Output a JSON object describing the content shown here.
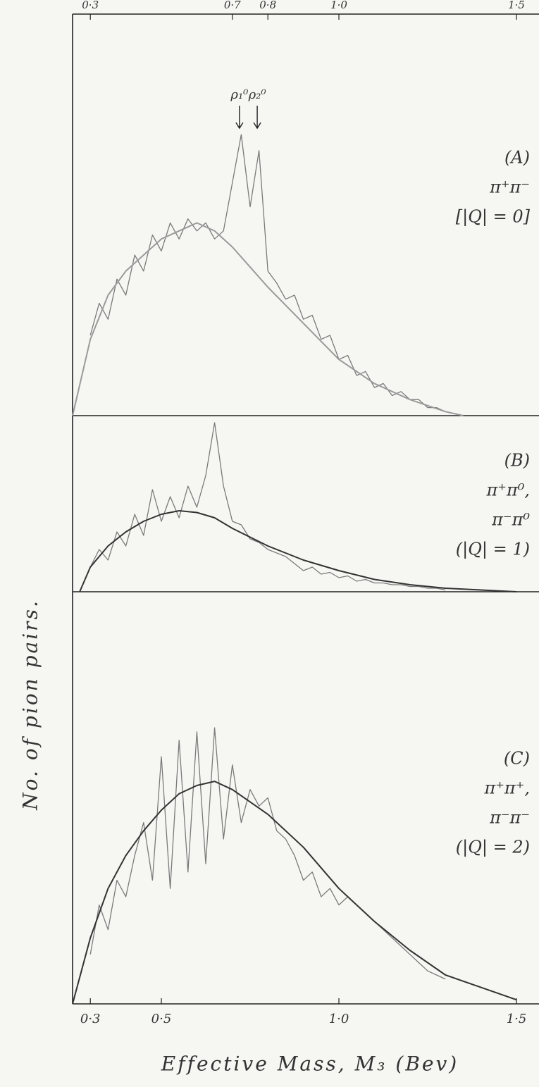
{
  "chart_data": [
    {
      "type": "line",
      "xlim": [
        0.25,
        1.55
      ],
      "ylim": [
        0,
        100
      ],
      "x2ticks": [
        {
          "value": 0.3,
          "label": "0·3"
        },
        {
          "value": 0.7,
          "label": "0·7"
        },
        {
          "value": 0.8,
          "label": "0·8"
        },
        {
          "value": 1.0,
          "label": "1·0"
        },
        {
          "value": 1.5,
          "label": "1·5"
        }
      ],
      "panel_label": [
        "(A)",
        "π⁺π⁻",
        "[|Q| = 0]"
      ],
      "annotations": [
        {
          "text": "ρ₁⁰",
          "x": 0.72
        },
        {
          "text": "ρ₂⁰",
          "x": 0.77
        }
      ],
      "series": [
        {
          "color": "#7a7a7a",
          "x": [
            0.3,
            0.325,
            0.35,
            0.375,
            0.4,
            0.425,
            0.45,
            0.475,
            0.5,
            0.525,
            0.55,
            0.575,
            0.6,
            0.625,
            0.65,
            0.675,
            0.7,
            0.725,
            0.75,
            0.775,
            0.8,
            0.825,
            0.85,
            0.875,
            0.9,
            0.925,
            0.95,
            0.975,
            1.0,
            1.025,
            1.05,
            1.075,
            1.1,
            1.125,
            1.15,
            1.175,
            1.2,
            1.225,
            1.25,
            1.275,
            1.3
          ],
          "values": [
            20,
            28,
            24,
            34,
            30,
            40,
            36,
            45,
            41,
            48,
            44,
            49,
            46,
            48,
            44,
            46,
            58,
            70,
            52,
            66,
            36,
            33,
            29,
            30,
            24,
            25,
            19,
            20,
            14,
            15,
            10,
            11,
            7,
            8,
            5,
            6,
            4,
            4,
            2,
            2,
            1
          ]
        },
        {
          "color": "#9a9a9a",
          "x": [
            0.25,
            0.3,
            0.35,
            0.4,
            0.45,
            0.5,
            0.55,
            0.6,
            0.65,
            0.7,
            0.8,
            0.9,
            1.0,
            1.1,
            1.2,
            1.3,
            1.35
          ],
          "values": [
            0,
            19,
            30,
            36,
            40,
            44,
            46,
            48,
            46,
            42,
            32,
            23,
            14,
            8,
            4,
            1,
            0
          ]
        }
      ]
    },
    {
      "type": "line",
      "xlim": [
        0.25,
        1.55
      ],
      "ylim": [
        0,
        100
      ],
      "ylabel": "No. of pion pairs.",
      "panel_label": [
        "(B)",
        "π⁺π⁰,",
        "π⁻π⁰",
        "(|Q| = 1)"
      ],
      "series": [
        {
          "color": "#7a7a7a",
          "x": [
            0.3,
            0.325,
            0.35,
            0.375,
            0.4,
            0.425,
            0.45,
            0.475,
            0.5,
            0.525,
            0.55,
            0.575,
            0.6,
            0.625,
            0.65,
            0.675,
            0.7,
            0.725,
            0.75,
            0.775,
            0.8,
            0.825,
            0.85,
            0.875,
            0.9,
            0.925,
            0.95,
            0.975,
            1.0,
            1.025,
            1.05,
            1.075,
            1.1,
            1.125,
            1.15,
            1.175,
            1.2,
            1.225,
            1.25,
            1.275,
            1.3
          ],
          "values": [
            14,
            24,
            18,
            34,
            26,
            44,
            32,
            58,
            40,
            54,
            42,
            60,
            48,
            66,
            96,
            60,
            40,
            38,
            30,
            28,
            24,
            22,
            20,
            16,
            12,
            14,
            10,
            11,
            8,
            9,
            6,
            7,
            5,
            5,
            4,
            4,
            3,
            3,
            2,
            2,
            1
          ]
        },
        {
          "color": "#333333",
          "x": [
            0.27,
            0.3,
            0.35,
            0.4,
            0.45,
            0.5,
            0.55,
            0.6,
            0.65,
            0.7,
            0.8,
            0.9,
            1.0,
            1.1,
            1.2,
            1.3,
            1.4,
            1.5
          ],
          "values": [
            0,
            14,
            26,
            34,
            40,
            44,
            46,
            45,
            42,
            36,
            26,
            18,
            12,
            7,
            4,
            2,
            1,
            0
          ]
        }
      ]
    },
    {
      "type": "line",
      "xlim": [
        0.25,
        1.55
      ],
      "ylim": [
        0,
        100
      ],
      "xticks": [
        {
          "value": 0.3,
          "label": "0·3"
        },
        {
          "value": 0.5,
          "label": "0·5"
        },
        {
          "value": 1.0,
          "label": "1·0"
        },
        {
          "value": 1.5,
          "label": "1·5"
        }
      ],
      "xlabel": "Effective Mass, M₃ (Bev)",
      "panel_label": [
        "(C)",
        "π⁺π⁺,",
        "π⁻π⁻",
        "(|Q| = 2)"
      ],
      "series": [
        {
          "color": "#7a7a7a",
          "x": [
            0.3,
            0.325,
            0.35,
            0.375,
            0.4,
            0.425,
            0.45,
            0.475,
            0.5,
            0.525,
            0.55,
            0.575,
            0.6,
            0.625,
            0.65,
            0.675,
            0.7,
            0.725,
            0.75,
            0.775,
            0.8,
            0.825,
            0.85,
            0.875,
            0.9,
            0.925,
            0.95,
            0.975,
            1.0,
            1.025,
            1.05,
            1.075,
            1.1,
            1.125,
            1.15,
            1.175,
            1.2,
            1.225,
            1.25,
            1.275,
            1.3
          ],
          "values": [
            12,
            24,
            18,
            30,
            26,
            36,
            44,
            30,
            60,
            28,
            64,
            32,
            66,
            34,
            67,
            40,
            58,
            44,
            52,
            48,
            50,
            42,
            40,
            36,
            30,
            32,
            26,
            28,
            24,
            26,
            24,
            22,
            20,
            18,
            16,
            14,
            12,
            10,
            8,
            7,
            6
          ]
        },
        {
          "color": "#333333",
          "x": [
            0.25,
            0.3,
            0.35,
            0.4,
            0.45,
            0.5,
            0.55,
            0.6,
            0.65,
            0.7,
            0.8,
            0.9,
            1.0,
            1.1,
            1.2,
            1.3,
            1.4,
            1.5
          ],
          "values": [
            0,
            16,
            28,
            36,
            42,
            47,
            51,
            53,
            54,
            52,
            46,
            38,
            28,
            20,
            13,
            7,
            4,
            1
          ]
        }
      ]
    }
  ]
}
